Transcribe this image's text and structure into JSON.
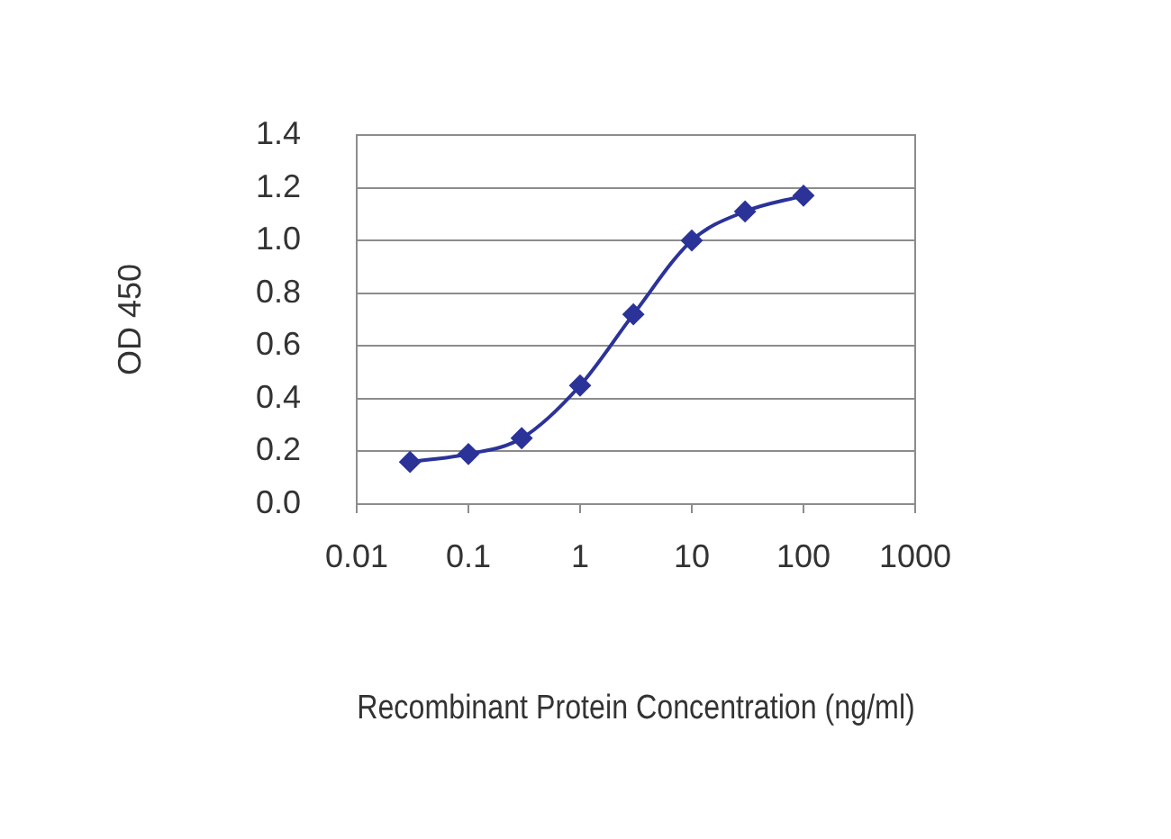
{
  "chart_data": {
    "type": "line",
    "xlabel": "Recombinant Protein Concentration (ng/ml)",
    "ylabel": "OD 450",
    "x": [
      0.03,
      0.1,
      0.3,
      1,
      3,
      10,
      30,
      100
    ],
    "series": [
      {
        "color": "#2b3399",
        "values": [
          0.16,
          0.19,
          0.25,
          0.45,
          0.72,
          1.0,
          1.11,
          1.17
        ]
      }
    ],
    "log": "x",
    "xlim": [
      0.01,
      1000
    ],
    "xticks": [
      0.01,
      0.1,
      1,
      10,
      100,
      1000
    ],
    "ylim": [
      0,
      1.4
    ],
    "yticks": [
      {
        "value": 0,
        "label": "0.0"
      },
      0.2,
      0.4,
      0.6,
      0.8,
      {
        "value": 1,
        "label": "1.0"
      },
      1.2,
      1.4
    ],
    "grid": "y",
    "marker": "diamond",
    "line_style": "solid"
  }
}
